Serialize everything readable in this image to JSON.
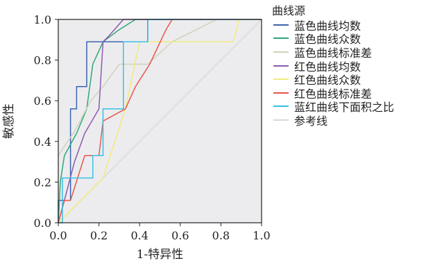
{
  "chart_data": {
    "type": "line",
    "xlabel": "1-特异性",
    "ylabel": "敏感性",
    "xlim": [
      0,
      1
    ],
    "ylim": [
      0,
      1
    ],
    "xticks": [
      "0.0",
      "0.2",
      "0.4",
      "0.6",
      "0.8",
      "1.0"
    ],
    "yticks": [
      "0.0",
      "0.2",
      "0.4",
      "0.6",
      "0.8",
      "1.0"
    ],
    "grid": false,
    "legend_title": "曲线源",
    "legend_position": "right",
    "plot_background": "#ececee",
    "series": [
      {
        "name": "蓝色曲线均数",
        "color": "#3b63b0",
        "step": true,
        "points": [
          [
            0,
            0
          ],
          [
            0,
            0.11
          ],
          [
            0.06,
            0.11
          ],
          [
            0.06,
            0.56
          ],
          [
            0.09,
            0.56
          ],
          [
            0.09,
            0.67
          ],
          [
            0.14,
            0.67
          ],
          [
            0.14,
            0.89
          ],
          [
            0.22,
            0.89
          ],
          [
            0.22,
            0.89
          ],
          [
            0.44,
            0.89
          ],
          [
            0.44,
            1.0
          ],
          [
            1.0,
            1.0
          ]
        ]
      },
      {
        "name": "蓝色曲线众数",
        "color": "#2ea77a",
        "step": false,
        "points": [
          [
            0,
            0
          ],
          [
            0.01,
            0.2
          ],
          [
            0.03,
            0.33
          ],
          [
            0.09,
            0.44
          ],
          [
            0.14,
            0.56
          ],
          [
            0.17,
            0.78
          ],
          [
            0.22,
            0.89
          ],
          [
            0.3,
            0.95
          ],
          [
            0.38,
            1.0
          ],
          [
            1.0,
            1.0
          ]
        ]
      },
      {
        "name": "蓝色曲线标准差",
        "color": "#cfd3b9",
        "step": false,
        "points": [
          [
            0,
            0.33
          ],
          [
            0.08,
            0.45
          ],
          [
            0.16,
            0.6
          ],
          [
            0.22,
            0.67
          ],
          [
            0.3,
            0.78
          ],
          [
            0.44,
            0.78
          ],
          [
            0.56,
            0.89
          ],
          [
            0.78,
            1.0
          ],
          [
            1.0,
            1.0
          ]
        ]
      },
      {
        "name": "红色曲线均数",
        "color": "#8c5ab0",
        "step": false,
        "points": [
          [
            0,
            0
          ],
          [
            0.03,
            0.11
          ],
          [
            0.08,
            0.3
          ],
          [
            0.13,
            0.44
          ],
          [
            0.2,
            0.56
          ],
          [
            0.22,
            0.89
          ],
          [
            0.25,
            0.92
          ],
          [
            0.32,
            1.0
          ],
          [
            1.0,
            1.0
          ]
        ]
      },
      {
        "name": "红色曲线众数",
        "color": "#f2ea7c",
        "step": false,
        "points": [
          [
            0,
            0
          ],
          [
            0.1,
            0.1
          ],
          [
            0.22,
            0.22
          ],
          [
            0.33,
            0.56
          ],
          [
            0.4,
            0.89
          ],
          [
            0.86,
            0.89
          ],
          [
            0.89,
            1.0
          ],
          [
            1.0,
            1.0
          ]
        ]
      },
      {
        "name": "红色曲线标准差",
        "color": "#e8554c",
        "step": false,
        "points": [
          [
            0,
            0
          ],
          [
            0.03,
            0.11
          ],
          [
            0.06,
            0.11
          ],
          [
            0.13,
            0.33
          ],
          [
            0.2,
            0.33
          ],
          [
            0.22,
            0.5
          ],
          [
            0.33,
            0.56
          ],
          [
            0.38,
            0.67
          ],
          [
            0.45,
            0.78
          ],
          [
            0.53,
            0.95
          ],
          [
            0.56,
            1.0
          ],
          [
            1.0,
            1.0
          ]
        ]
      },
      {
        "name": "蓝红曲线下面积之比",
        "color": "#37c0e6",
        "step": true,
        "points": [
          [
            0,
            0
          ],
          [
            0.02,
            0
          ],
          [
            0.02,
            0.22
          ],
          [
            0.17,
            0.22
          ],
          [
            0.17,
            0.33
          ],
          [
            0.22,
            0.33
          ],
          [
            0.22,
            0.56
          ],
          [
            0.32,
            0.56
          ],
          [
            0.32,
            0.89
          ],
          [
            0.44,
            0.89
          ],
          [
            0.44,
            1.0
          ],
          [
            1.0,
            1.0
          ]
        ]
      },
      {
        "name": "参考线",
        "color": "#d9d9d9",
        "step": false,
        "points": [
          [
            0,
            0
          ],
          [
            1,
            1
          ]
        ]
      }
    ]
  }
}
